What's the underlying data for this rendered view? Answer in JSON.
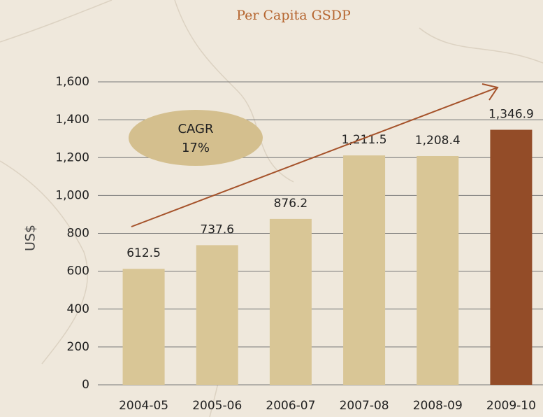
{
  "chart_data": {
    "type": "bar",
    "title": "Per Capita GSDP",
    "y_label": "US$",
    "categories": [
      "2004-05",
      "2005-06",
      "2006-07",
      "2007-08",
      "2008-09",
      "2009-10"
    ],
    "values": [
      612.5,
      737.6,
      876.2,
      1211.5,
      1208.4,
      1346.9
    ],
    "value_labels": [
      "612.5",
      "737.6",
      "876.2",
      "1,211.5",
      "1,208.4",
      "1,346.9"
    ],
    "colors": [
      "#d9c696",
      "#d9c696",
      "#d9c696",
      "#d9c696",
      "#d9c696",
      "#934c28"
    ],
    "ylim": [
      0,
      1600
    ],
    "yticks": [
      0,
      200,
      400,
      600,
      800,
      {
        "value": 1000,
        "label": "1,000"
      },
      {
        "value": 1200,
        "label": "1,200"
      },
      {
        "value": 1400,
        "label": "1,400"
      },
      {
        "value": 1600,
        "label": "1,600"
      }
    ],
    "grid": true,
    "annotations": [
      "CAGR",
      "17%"
    ]
  }
}
